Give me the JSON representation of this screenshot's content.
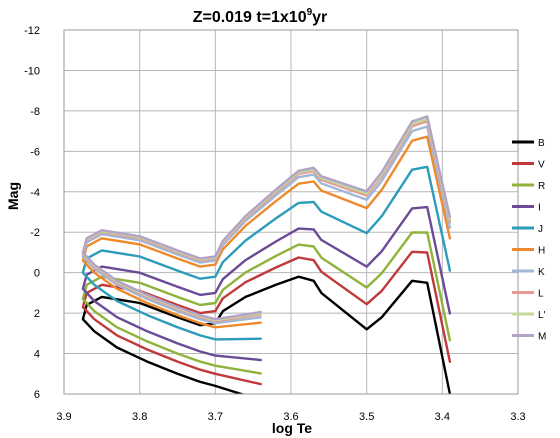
{
  "chart_data": {
    "type": "line",
    "title": "Z=0.019   t=1x10",
    "title_sup": "9",
    "title_suffix": "yr",
    "xlabel": "log Te",
    "ylabel": "Mag",
    "xlim": [
      3.9,
      3.3
    ],
    "ylim": [
      6,
      -12
    ],
    "x_ticks": [
      "3.9",
      "3.8",
      "3.7",
      "3.6",
      "3.5",
      "3.4",
      "3.3"
    ],
    "x_tick_values": [
      3.9,
      3.8,
      3.7,
      3.6,
      3.5,
      3.4,
      3.3
    ],
    "y_ticks": [
      "-12",
      "-10",
      "-8",
      "-6",
      "-4",
      "-2",
      "0",
      "2",
      "4",
      "6"
    ],
    "y_tick_values": [
      -12,
      -10,
      -8,
      -6,
      -4,
      -2,
      0,
      2,
      4,
      6
    ],
    "grid": true,
    "legend_position": "right",
    "series": [
      {
        "name": "B",
        "color": "#000000",
        "offset": 0
      },
      {
        "name": "V",
        "color": "#c0393b",
        "offset": -0.6
      },
      {
        "name": "R",
        "color": "#8fb33a",
        "offset": -1.0
      },
      {
        "name": "I",
        "color": "#6b4a96",
        "offset": -1.5
      },
      {
        "name": "J",
        "color": "#2c9cba",
        "offset": -2.3
      },
      {
        "name": "H",
        "color": "#ee8a2c",
        "offset": -2.9
      },
      {
        "name": "K",
        "color": "#9fb7d8",
        "offset": -3.1
      },
      {
        "name": "L",
        "color": "#e59a96",
        "offset": -3.2
      },
      {
        "name": "L'",
        "color": "#c1d99a",
        "offset": -3.25
      },
      {
        "name": "M",
        "color": "#b3a2c9",
        "offset": -3.3
      }
    ],
    "series_note_x": [
      3.64,
      3.7,
      3.72,
      3.75,
      3.79,
      3.83,
      3.86,
      3.88,
      3.87,
      3.85,
      3.8,
      3.75,
      3.7,
      3.66,
      3.62,
      3.59,
      3.57,
      3.55,
      3.53,
      3.5,
      3.48,
      3.46,
      3.43,
      3.41,
      3.39
    ],
    "base_curve": [
      [
        3.64,
        6.3
      ],
      [
        3.7,
        5.6
      ],
      [
        3.72,
        5.4
      ],
      [
        3.75,
        5.0
      ],
      [
        3.79,
        4.4
      ],
      [
        3.83,
        3.7
      ],
      [
        3.86,
        2.9
      ],
      [
        3.875,
        2.3
      ],
      [
        3.87,
        1.6
      ],
      [
        3.85,
        1.2
      ],
      [
        3.8,
        1.5
      ],
      [
        3.75,
        2.2
      ],
      [
        3.72,
        2.6
      ],
      [
        3.7,
        2.5
      ],
      [
        3.69,
        1.9
      ],
      [
        3.66,
        1.2
      ],
      [
        3.62,
        0.6
      ],
      [
        3.59,
        0.2
      ],
      [
        3.57,
        0.4
      ],
      [
        3.56,
        1.0
      ],
      [
        3.5,
        2.8
      ],
      [
        3.48,
        2.2
      ],
      [
        3.44,
        0.4
      ],
      [
        3.42,
        0.5
      ],
      [
        3.39,
        6.0
      ]
    ]
  }
}
